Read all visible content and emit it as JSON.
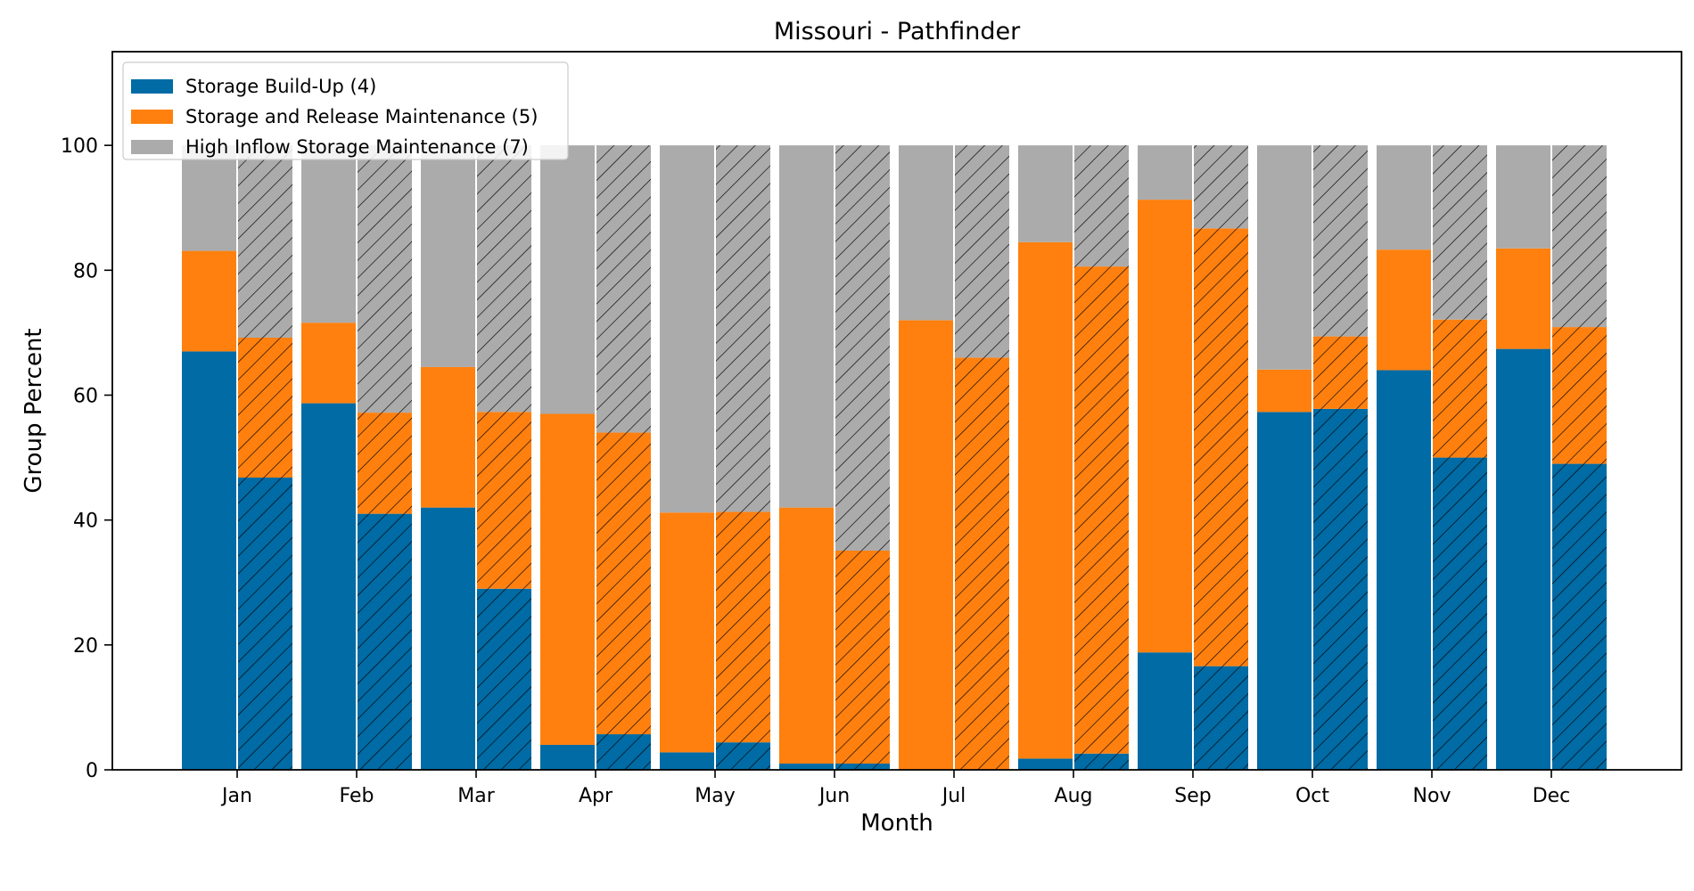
{
  "chart_data": {
    "type": "bar",
    "subtype": "stacked-grouped",
    "title": "Missouri - Pathfinder",
    "xlabel": "Month",
    "ylabel": "Group Percent",
    "ylim": [
      0,
      115
    ],
    "yticks": [
      0,
      20,
      40,
      60,
      80,
      100
    ],
    "categories": [
      "Jan",
      "Feb",
      "Mar",
      "Apr",
      "May",
      "Jun",
      "Jul",
      "Aug",
      "Sep",
      "Oct",
      "Nov",
      "Dec"
    ],
    "legend_position": "top-left",
    "grid": false,
    "groups": [
      {
        "hatch": false
      },
      {
        "hatch": true
      }
    ],
    "series": [
      {
        "name": "Storage Build-Up (4)",
        "color": "#006BA4",
        "values": [
          [
            67.0,
            46.8
          ],
          [
            58.7,
            41.0
          ],
          [
            42.0,
            29.0
          ],
          [
            4.0,
            5.7
          ],
          [
            2.8,
            4.4
          ],
          [
            1.0,
            1.0
          ],
          [
            0.0,
            0.0
          ],
          [
            1.8,
            2.6
          ],
          [
            18.8,
            16.6
          ],
          [
            57.3,
            57.8
          ],
          [
            64.0,
            50.0
          ],
          [
            67.4,
            49.0
          ]
        ]
      },
      {
        "name": "Storage and Release Maintenance (5)",
        "color": "#FF800E",
        "values": [
          [
            16.1,
            22.4
          ],
          [
            12.9,
            16.2
          ],
          [
            22.5,
            28.3
          ],
          [
            53.0,
            48.3
          ],
          [
            38.4,
            36.9
          ],
          [
            41.0,
            34.1
          ],
          [
            72.0,
            66.0
          ],
          [
            82.7,
            78.0
          ],
          [
            72.5,
            70.1
          ],
          [
            6.8,
            11.6
          ],
          [
            19.3,
            22.1
          ],
          [
            16.1,
            21.9
          ]
        ]
      },
      {
        "name": "High Inflow Storage Maintenance (7)",
        "color": "#ABABAB",
        "values": [
          [
            16.9,
            30.8
          ],
          [
            28.4,
            42.8
          ],
          [
            35.5,
            42.7
          ],
          [
            43.0,
            46.0
          ],
          [
            58.8,
            58.7
          ],
          [
            58.0,
            64.9
          ],
          [
            28.0,
            34.0
          ],
          [
            15.5,
            19.4
          ],
          [
            8.7,
            13.3
          ],
          [
            35.9,
            30.6
          ],
          [
            16.7,
            27.9
          ],
          [
            16.5,
            29.1
          ]
        ]
      }
    ]
  }
}
